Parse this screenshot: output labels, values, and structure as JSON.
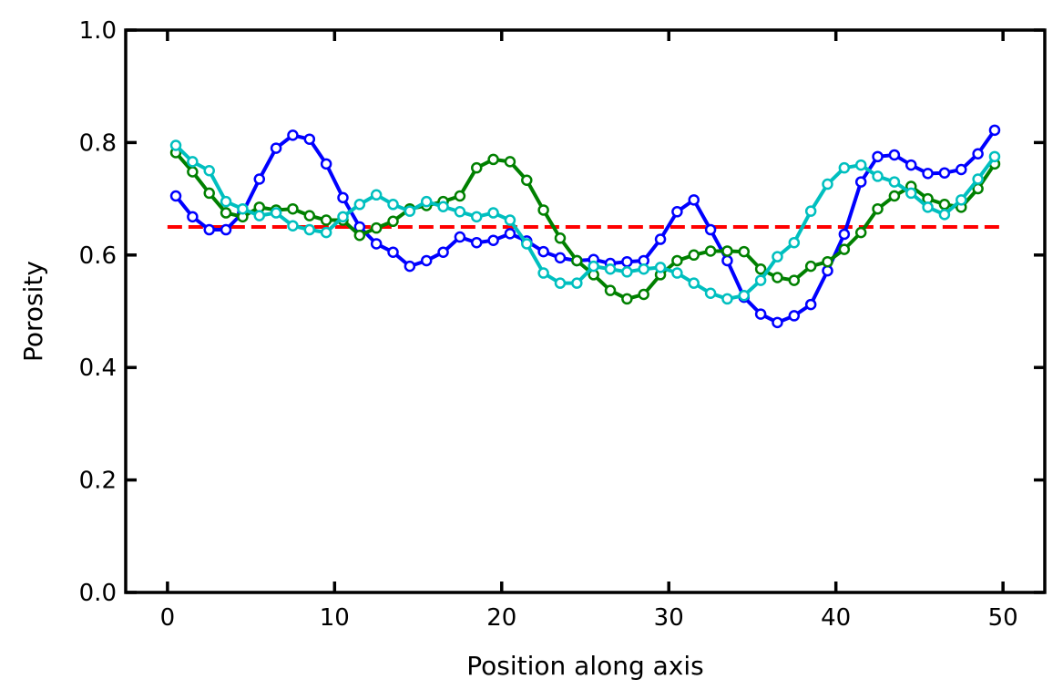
{
  "chart_data": {
    "type": "line",
    "title": "",
    "xlabel": "Position along axis",
    "ylabel": "Porosity",
    "xlim": [
      -2.5,
      52.5
    ],
    "ylim": [
      0.0,
      1.0
    ],
    "xticks": [
      0,
      10,
      20,
      30,
      40,
      50
    ],
    "xtick_labels": [
      "0",
      "10",
      "20",
      "30",
      "40",
      "50"
    ],
    "yticks": [
      0.0,
      0.2,
      0.4,
      0.6,
      0.8,
      1.0
    ],
    "ytick_labels": [
      "0.0",
      "0.2",
      "0.4",
      "0.6",
      "0.8",
      "1.0"
    ],
    "grid": false,
    "legend": "none",
    "x": [
      0.5,
      1.5,
      2.5,
      3.5,
      4.5,
      5.5,
      6.5,
      7.5,
      8.5,
      9.5,
      10.5,
      11.5,
      12.5,
      13.5,
      14.5,
      15.5,
      16.5,
      17.5,
      18.5,
      19.5,
      20.5,
      21.5,
      22.5,
      23.5,
      24.5,
      25.5,
      26.5,
      27.5,
      28.5,
      29.5,
      30.5,
      31.5,
      32.5,
      33.5,
      34.5,
      35.5,
      36.5,
      37.5,
      38.5,
      39.5,
      40.5,
      41.5,
      42.5,
      43.5,
      44.5,
      45.5,
      46.5,
      47.5,
      48.5,
      49.5
    ],
    "series": [
      {
        "color": "#0000ff",
        "marker": "circle-open",
        "values": [
          0.705,
          0.668,
          0.645,
          0.645,
          0.675,
          0.735,
          0.79,
          0.813,
          0.806,
          0.762,
          0.702,
          0.65,
          0.62,
          0.605,
          0.58,
          0.59,
          0.605,
          0.632,
          0.622,
          0.626,
          0.638,
          0.625,
          0.606,
          0.595,
          0.59,
          0.592,
          0.585,
          0.588,
          0.59,
          0.628,
          0.677,
          0.698,
          0.645,
          0.59,
          0.525,
          0.495,
          0.48,
          0.492,
          0.512,
          0.572,
          0.637,
          0.73,
          0.775,
          0.778,
          0.76,
          0.745,
          0.746,
          0.752,
          0.78,
          0.822
        ]
      },
      {
        "color": "#008000",
        "marker": "circle-open",
        "values": [
          0.782,
          0.748,
          0.71,
          0.675,
          0.668,
          0.685,
          0.68,
          0.682,
          0.67,
          0.662,
          0.662,
          0.635,
          0.648,
          0.66,
          0.682,
          0.688,
          0.695,
          0.705,
          0.755,
          0.77,
          0.766,
          0.733,
          0.68,
          0.63,
          0.59,
          0.565,
          0.537,
          0.522,
          0.53,
          0.565,
          0.59,
          0.6,
          0.607,
          0.607,
          0.606,
          0.575,
          0.56,
          0.555,
          0.58,
          0.588,
          0.61,
          0.64,
          0.682,
          0.705,
          0.722,
          0.7,
          0.69,
          0.685,
          0.718,
          0.762
        ]
      },
      {
        "color": "#00bfbf",
        "marker": "circle-open",
        "values": [
          0.795,
          0.766,
          0.75,
          0.695,
          0.682,
          0.67,
          0.675,
          0.652,
          0.645,
          0.64,
          0.668,
          0.69,
          0.707,
          0.69,
          0.678,
          0.695,
          0.686,
          0.677,
          0.668,
          0.675,
          0.662,
          0.62,
          0.568,
          0.55,
          0.55,
          0.58,
          0.575,
          0.57,
          0.575,
          0.578,
          0.568,
          0.55,
          0.532,
          0.522,
          0.528,
          0.555,
          0.597,
          0.622,
          0.678,
          0.726,
          0.755,
          0.76,
          0.74,
          0.73,
          0.71,
          0.685,
          0.672,
          0.698,
          0.735,
          0.775
        ]
      }
    ],
    "reference_line": {
      "y": 0.65,
      "x_range": [
        0,
        50
      ],
      "color": "#ff0000",
      "style": "dashed"
    }
  }
}
